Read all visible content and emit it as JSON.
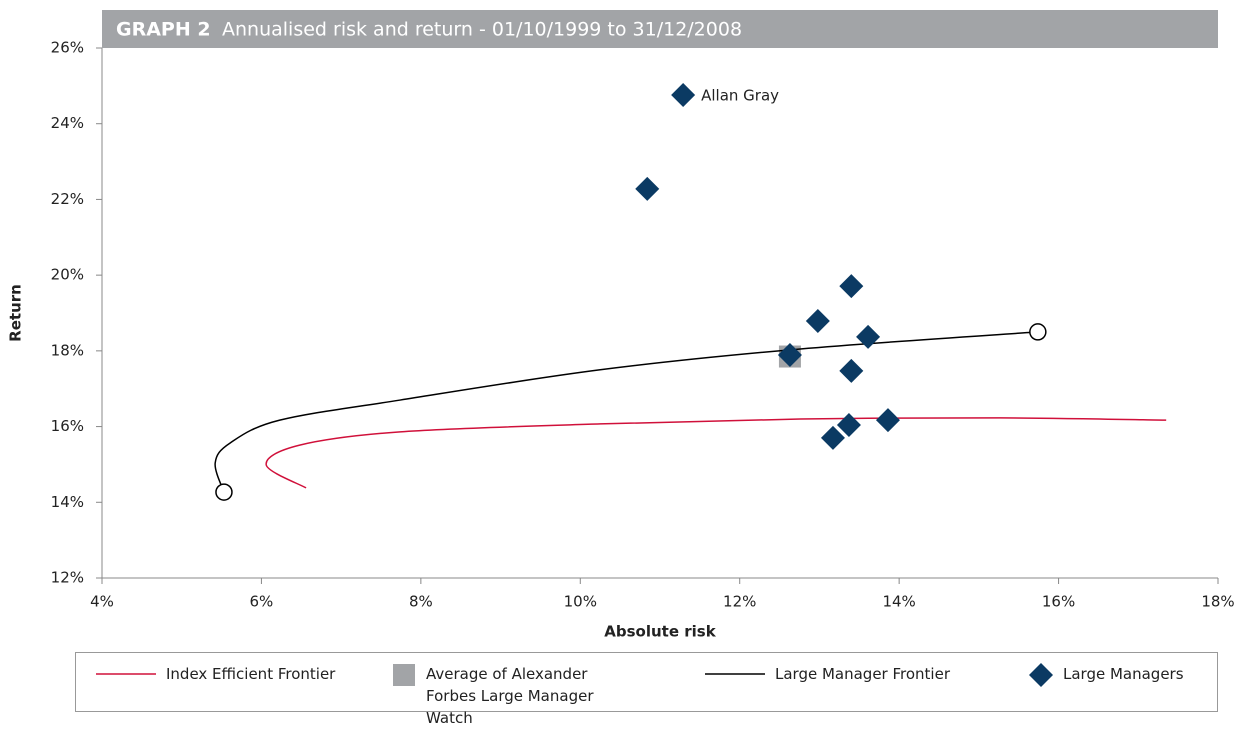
{
  "chart_data": {
    "type": "scatter",
    "title_label": "GRAPH 2",
    "title": "Annualised risk and return  - 01/10/1999 to 31/12/2008",
    "title_bar_color": "#a2a4a7",
    "xlabel": "Absolute risk",
    "ylabel": "Return",
    "xlim": [
      4,
      18
    ],
    "ylim": [
      12,
      26
    ],
    "xticks": [
      {
        "value": 4,
        "label": "4%"
      },
      {
        "value": 6,
        "label": "6%"
      },
      {
        "value": 8,
        "label": "8%"
      },
      {
        "value": 10,
        "label": "10%"
      },
      {
        "value": 12,
        "label": "12%"
      },
      {
        "value": 14,
        "label": "14%"
      },
      {
        "value": 16,
        "label": "16%"
      },
      {
        "value": 18,
        "label": "18%"
      }
    ],
    "yticks": [
      {
        "value": 12,
        "label": "12%"
      },
      {
        "value": 14,
        "label": "14%"
      },
      {
        "value": 16,
        "label": "16%"
      },
      {
        "value": 18,
        "label": "18%"
      },
      {
        "value": 20,
        "label": "20%"
      },
      {
        "value": 22,
        "label": "22%"
      },
      {
        "value": 24,
        "label": "24%"
      },
      {
        "value": 26,
        "label": "26%"
      }
    ],
    "series": [
      {
        "name": "Index Efficient Frontier",
        "color": "#d0103a",
        "kind": "line",
        "x": [
          6.56,
          6.06,
          6.48,
          7.74,
          10.25,
          12.76,
          15.27,
          17.35
        ],
        "values": [
          14.38,
          14.99,
          15.51,
          15.86,
          16.07,
          16.2,
          16.23,
          16.17
        ]
      },
      {
        "name": "Average of Alexander Forbes Large Manager Watch",
        "color": "#a2a4a7",
        "kind": "square",
        "x": [
          12.63
        ],
        "values": [
          17.85
        ]
      },
      {
        "name": "Large Manager Frontier",
        "color": "#000000",
        "kind": "line",
        "end_markers": "circle",
        "x": [
          5.53,
          5.42,
          5.61,
          6.23,
          7.74,
          10.25,
          12.76,
          15.74
        ],
        "values": [
          14.27,
          15.04,
          15.57,
          16.17,
          16.7,
          17.5,
          18.05,
          18.5
        ]
      },
      {
        "name": "Large Managers",
        "color": "#0b3a63",
        "kind": "diamond",
        "x": [
          11.29,
          10.84,
          13.4,
          12.98,
          13.61,
          12.63,
          13.4,
          13.86,
          13.37,
          13.17
        ],
        "values": [
          24.76,
          22.28,
          19.71,
          18.79,
          18.37,
          17.89,
          17.47,
          16.17,
          16.04,
          15.7
        ]
      }
    ],
    "annotations": [
      {
        "text": "Allan Gray",
        "x": 11.29,
        "y": 24.76
      }
    ]
  }
}
